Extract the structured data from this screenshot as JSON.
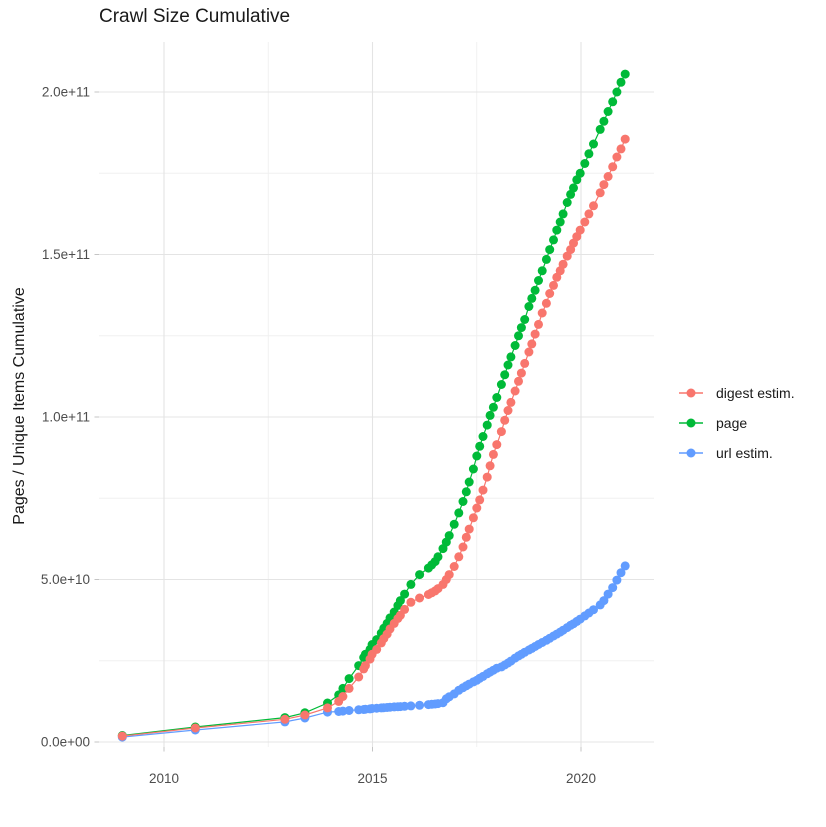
{
  "title": "Crawl Size Cumulative",
  "y_axis_label": "Pages / Unique Items Cumulative",
  "legend": {
    "position": "right",
    "items": [
      {
        "label": "digest estim.",
        "color": "#F8766D"
      },
      {
        "label": "page",
        "color": "#00BA38"
      },
      {
        "label": "url estim.",
        "color": "#619CFF"
      }
    ]
  },
  "axes": {
    "x_tick_labels": [
      "2010",
      "2015",
      "2020"
    ],
    "x_tick_years": [
      2010,
      2015,
      2020
    ],
    "x_minor_years": [
      2012.5,
      2017.5
    ],
    "y_tick_labels": [
      "0.0e+00",
      "5.0e+10",
      "1.0e+11",
      "1.5e+11",
      "2.0e+11"
    ],
    "y_tick_values_e9": [
      0,
      50,
      100,
      150,
      200
    ],
    "y_minor_values_e9": [
      25,
      75,
      125,
      175
    ]
  },
  "chart_data": {
    "type": "scatter",
    "title": "Crawl Size Cumulative",
    "xlabel": "",
    "ylabel": "Pages / Unique Items Cumulative",
    "x_unit": "decimal year",
    "y_unit": "count (value x 1e9)",
    "xlim": [
      2008.4,
      2021.8
    ],
    "ylim_e9": [
      -2,
      215
    ],
    "grid": true,
    "legend_position": "right",
    "x": [
      2009.0,
      2010.75,
      2012.9,
      2013.38,
      2013.92,
      2014.19,
      2014.29,
      2014.44,
      2014.67,
      2014.79,
      2014.83,
      2014.94,
      2014.99,
      2015.1,
      2015.21,
      2015.27,
      2015.35,
      2015.42,
      2015.52,
      2015.61,
      2015.67,
      2015.77,
      2015.92,
      2016.13,
      2016.34,
      2016.42,
      2016.5,
      2016.57,
      2016.69,
      2016.77,
      2016.84,
      2016.96,
      2017.07,
      2017.17,
      2017.25,
      2017.32,
      2017.42,
      2017.5,
      2017.57,
      2017.65,
      2017.75,
      2017.82,
      2017.9,
      2017.98,
      2018.09,
      2018.17,
      2018.25,
      2018.32,
      2018.42,
      2018.5,
      2018.57,
      2018.65,
      2018.75,
      2018.82,
      2018.9,
      2018.98,
      2019.07,
      2019.17,
      2019.25,
      2019.34,
      2019.42,
      2019.5,
      2019.57,
      2019.67,
      2019.75,
      2019.82,
      2019.9,
      2019.98,
      2020.09,
      2020.19,
      2020.3,
      2020.46,
      2020.55,
      2020.65,
      2020.76,
      2020.86,
      2020.96,
      2021.06
    ],
    "series": [
      {
        "name": "digest estim.",
        "color": "#F8766D",
        "values_e9": [
          1.8,
          4.3,
          7.0,
          8.3,
          10.5,
          12.5,
          14.0,
          16.5,
          20.0,
          22.5,
          23.5,
          25.5,
          27.0,
          28.5,
          30.5,
          31.8,
          33.2,
          34.8,
          36.5,
          38.0,
          39.0,
          40.8,
          43.0,
          44.3,
          45.4,
          45.9,
          46.5,
          47.2,
          48.5,
          50.0,
          51.5,
          54.0,
          57.0,
          60.0,
          63.0,
          65.5,
          69.0,
          72.0,
          74.5,
          77.5,
          81.5,
          85.0,
          88.5,
          91.5,
          95.5,
          99.0,
          102.0,
          104.5,
          108.0,
          111.0,
          113.5,
          116.5,
          120.0,
          122.5,
          125.5,
          128.5,
          132.0,
          135.0,
          138.0,
          140.5,
          143.0,
          145.0,
          147.0,
          149.5,
          151.5,
          153.5,
          155.5,
          157.5,
          160.0,
          162.5,
          165.0,
          169.0,
          171.5,
          174.0,
          177.0,
          180.0,
          182.5,
          185.5
        ]
      },
      {
        "name": "page",
        "color": "#00BA38",
        "values_e9": [
          2.0,
          4.6,
          7.5,
          9.0,
          12.0,
          14.5,
          16.5,
          19.5,
          23.5,
          26.0,
          27.0,
          28.5,
          30.0,
          31.5,
          33.5,
          35.0,
          36.5,
          38.2,
          40.0,
          42.0,
          43.5,
          45.5,
          48.5,
          51.5,
          53.5,
          54.5,
          55.5,
          57.0,
          59.5,
          61.5,
          63.5,
          67.0,
          70.5,
          74.0,
          77.0,
          80.0,
          84.0,
          88.0,
          91.0,
          94.0,
          97.5,
          100.5,
          103.0,
          106.0,
          110.0,
          113.0,
          116.0,
          118.5,
          122.0,
          125.0,
          127.5,
          130.0,
          134.0,
          136.5,
          139.0,
          142.0,
          145.0,
          148.5,
          151.5,
          154.5,
          157.5,
          160.0,
          162.5,
          166.0,
          168.5,
          170.5,
          173.0,
          175.0,
          178.0,
          181.0,
          184.0,
          188.5,
          191.0,
          194.0,
          197.0,
          200.0,
          203.0,
          205.5
        ]
      },
      {
        "name": "url estim.",
        "color": "#619CFF",
        "values_e9": [
          1.5,
          3.7,
          6.2,
          7.4,
          9.2,
          9.4,
          9.5,
          9.7,
          9.9,
          10.0,
          10.1,
          10.2,
          10.3,
          10.4,
          10.5,
          10.55,
          10.6,
          10.7,
          10.8,
          10.85,
          10.9,
          11.0,
          11.1,
          11.3,
          11.5,
          11.6,
          11.7,
          11.8,
          12.1,
          13.3,
          13.9,
          14.8,
          15.9,
          16.7,
          17.3,
          17.8,
          18.5,
          19.0,
          19.6,
          20.2,
          21.0,
          21.5,
          22.1,
          22.7,
          23.1,
          23.7,
          24.3,
          24.9,
          25.8,
          26.5,
          27.0,
          27.6,
          28.3,
          28.8,
          29.4,
          30.0,
          30.6,
          31.3,
          31.9,
          32.6,
          33.2,
          33.8,
          34.4,
          35.2,
          35.9,
          36.4,
          37.1,
          37.8,
          38.8,
          39.7,
          40.7,
          42.2,
          43.5,
          45.5,
          47.5,
          49.8,
          52.1,
          54.2
        ]
      }
    ]
  }
}
